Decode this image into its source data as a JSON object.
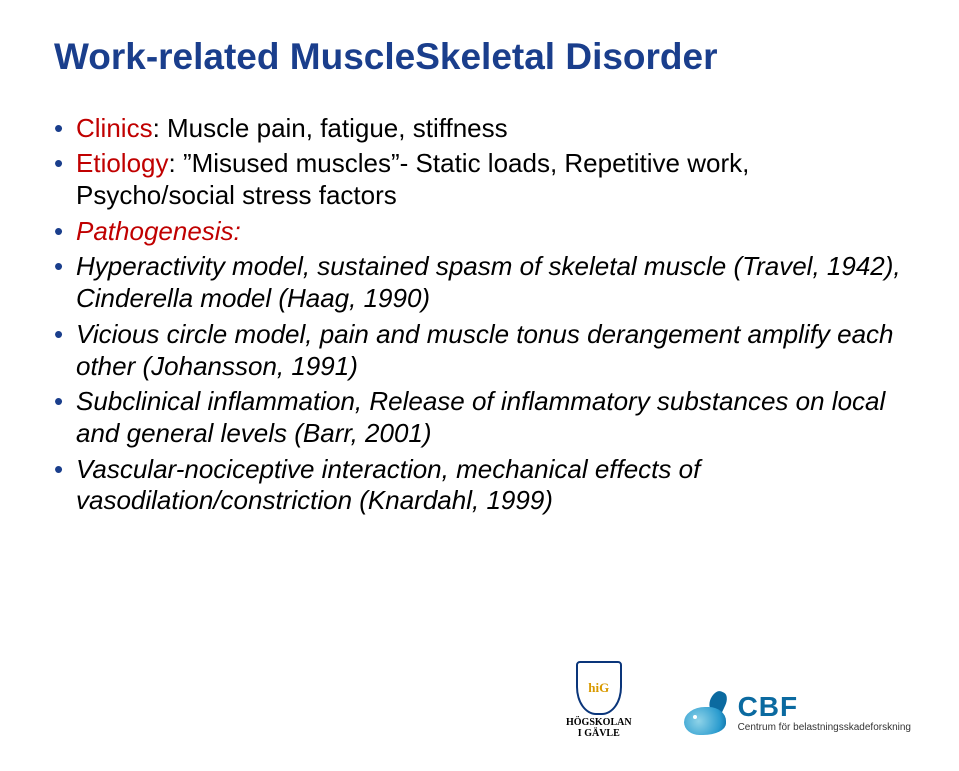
{
  "title": "Work-related MuscleSkeletal Disorder",
  "bullets": [
    {
      "label": "Clinics",
      "label_color": "#c00000",
      "text": ": Muscle pain, fatigue, stiffness",
      "italic": false
    },
    {
      "label": "Etiology",
      "label_color": "#c00000",
      "text": ": ”Misused muscles”- Static loads, Repetitive work, Psycho/social stress  factors",
      "italic": false
    },
    {
      "label": "Pathogenesis:",
      "label_color": "#c00000",
      "text": "",
      "italic": true
    },
    {
      "label": "",
      "text": "Hyperactivity model, sustained spasm of skeletal muscle (Travel, 1942), Cinderella model (Haag, 1990)",
      "italic": true
    },
    {
      "label": "",
      "text": "Vicious circle model, pain and muscle tonus derangement amplify each other (Johansson, 1991)",
      "italic": true
    },
    {
      "label": "",
      "text": "Subclinical inflammation, Release of inflammatory substances on local and general levels (Barr, 2001)",
      "italic": true
    },
    {
      "label": "",
      "text": " Vascular-nociceptive interaction, mechanical effects of vasodilation/constriction  (Knardahl, 1999)",
      "italic": true
    }
  ],
  "colors": {
    "title": "#1a3e8c",
    "bullet_marker": "#1a3e8c",
    "body_text": "#000000",
    "label": "#c00000",
    "background": "#ffffff"
  },
  "typography": {
    "title_fontsize": 37,
    "body_fontsize": 26,
    "title_weight": 700
  },
  "logos": {
    "hig": {
      "line1": "HÖGSKOLAN",
      "line2": "I GÄVLE",
      "shield_text": "hiG"
    },
    "cbf": {
      "title": "CBF",
      "subtitle": "Centrum för belastningsskadeforskning"
    }
  }
}
